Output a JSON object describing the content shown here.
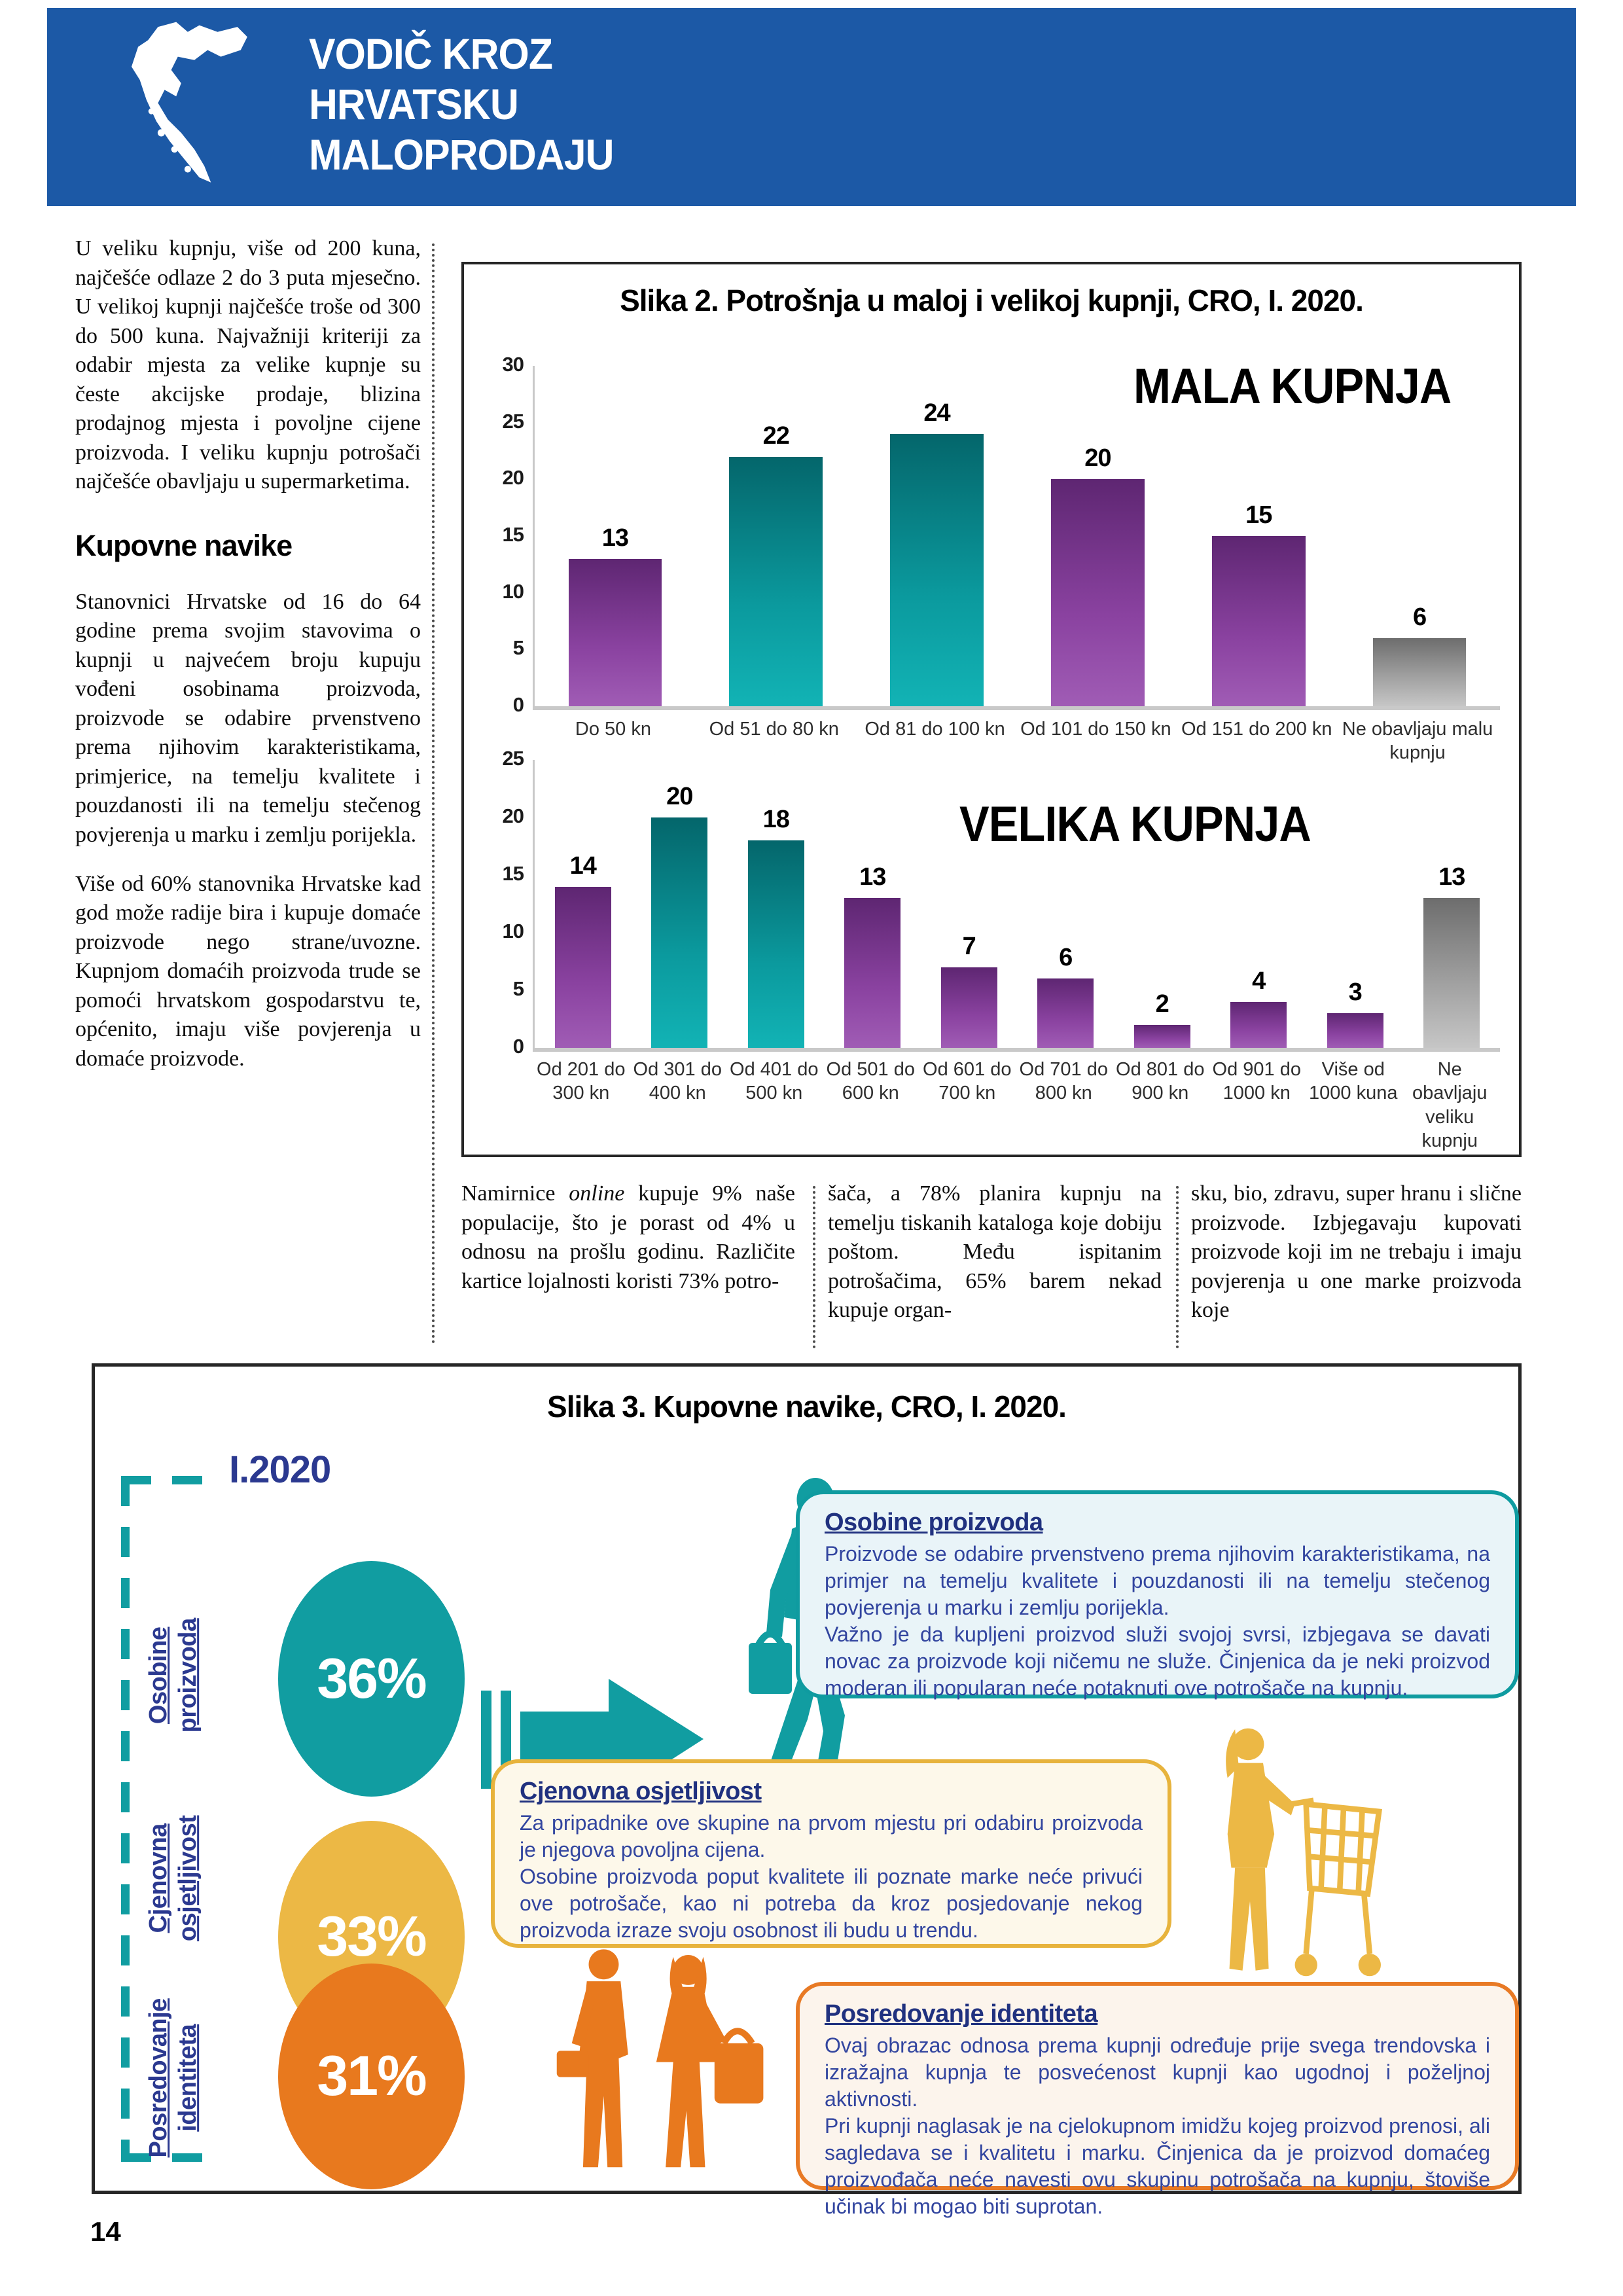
{
  "page": {
    "number": "14"
  },
  "header": {
    "title_line1": "VODIČ KROZ",
    "title_line2": "HRVATSKU",
    "title_line3": "MALOPRODAJU",
    "bg_color": "#1c59a6"
  },
  "left_column": {
    "p1": "U veliku kupnju, više od 200 kuna, najčešće odlaze 2 do 3 puta mjesečno. U velikoj kupnji najčešće troše od 300 do 500 kuna. Najvažniji kriteriji za odabir mjesta za velike kupnje su česte akcijske prodaje, blizina prodajnog mjesta i povoljne cijene proizvoda. I veliku kupnju potrošači najčešće obavljaju u supermarketima.",
    "heading": "Kupovne navike",
    "p2": "Stanovnici Hrvatske od 16 do 64 godine prema svojim stavovima o kupnji u najvećem broju kupuju vođeni osobinama proizvoda, proizvode se odabire prvenstveno prema njihovim karakteristikama, primjerice, na temelju kvalitete i pouzdanosti ili na temelju stečenog povjerenja u marku i zemlju porijekla.",
    "p3": "Više od 60% stanovnika Hrvatske kad god može radije bira i kupuje domaće proizvode nego strane/uvozne. Kupnjom domaćih proizvoda trude se pomoći hrvatskom gospodarstvu te, općenito, imaju više povjerenja u domaće proizvode."
  },
  "figure2": {
    "title": "Slika 2. Potrošnja u maloj i velikoj kupnji, CRO, I. 2020."
  },
  "chart_data": [
    {
      "type": "bar",
      "title_label": "MALA KUPNJA",
      "categories": [
        "Do 50 kn",
        "Od 51 do 80 kn",
        "Od 81 do 100 kn",
        "Od 101 do 150 kn",
        "Od 151 do 200 kn",
        "Ne obavljaju malu kupnju"
      ],
      "values": [
        13,
        22,
        24,
        20,
        15,
        6
      ],
      "colors": [
        "purple",
        "teal",
        "teal",
        "purple",
        "purple",
        "gray"
      ],
      "ylim": [
        0,
        30
      ],
      "ytick_step": 5,
      "grid": false,
      "legend": "none"
    },
    {
      "type": "bar",
      "title_label": "VELIKA KUPNJA",
      "categories": [
        "Od 201 do 300 kn",
        "Od 301 do 400 kn",
        "Od 401 do 500 kn",
        "Od 501 do 600 kn",
        "Od 601 do 700 kn",
        "Od 701 do 800 kn",
        "Od 801 do 900 kn",
        "Od 901 do 1000 kn",
        "Više od 1000 kuna",
        "Ne obavljaju veliku kupnju"
      ],
      "values": [
        14,
        20,
        18,
        13,
        7,
        6,
        2,
        4,
        3,
        13
      ],
      "colors": [
        "purple",
        "teal",
        "teal",
        "purple",
        "purple",
        "purple",
        "purple",
        "purple",
        "purple",
        "gray"
      ],
      "ylim": [
        0,
        25
      ],
      "ytick_step": 5,
      "grid": false,
      "legend": "none"
    }
  ],
  "bottom_columns": {
    "col1_pre": "Namirnice ",
    "col1_italic": "online",
    "col1_post": " kupuje 9% naše populacije, što je porast od 4% u odnosu na prošlu godinu. Različite kartice lojalnosti koristi 73% potro-",
    "col2": "šača, a 78% planira kupnju na temelju tiskanih kataloga koje dobiju poštom. Među ispitanim potrošačima, 65% barem nekad kupuje organ-",
    "col3": "sku, bio, zdravu, super hranu i slične proizvode. Izbjegavaju kupovati proizvode koji im ne trebaju i imaju povjerenja u one marke proizvoda koje"
  },
  "infographic": {
    "title": "Slika 3. Kupovne navike, CRO, I. 2020.",
    "year_label": "I.2020",
    "sections": [
      {
        "side_line1": "Osobine",
        "side_line2": "proizvoda",
        "percent": "36%",
        "color": "#119da1",
        "box_title": "Osobine proizvoda",
        "box_p1": "Proizvode se odabire prvenstveno prema njihovim karakteristikama,  na primjer na temelju kvalitete i pouzdanosti ili na temelju stečenog povjerenja u marku i zemlju porijekla.",
        "box_p2": "Važno je da kupljeni proizvod služi svojoj svrsi,  izbjegava se davati novac za proizvode koji ničemu ne služe.  Činjenica da je neki proizvod moderan ili popularan neće potaknuti ove potrošače na kupnju."
      },
      {
        "side_line1": "Cjenovna",
        "side_line2": "osjetljivost",
        "percent": "33%",
        "color": "#ecb845",
        "box_title": "Cjenovna osjetljivost",
        "box_p1": "Za pripadnike ove skupine na prvom mjestu pri odabiru proizvoda je njegova povoljna cijena.",
        "box_p2": "Osobine proizvoda poput kvalitete ili poznate marke neće privući ove potrošače, kao ni potreba da kroz posjedovanje nekog proizvoda izraze svoju osobnost ili budu u trendu."
      },
      {
        "side_line1": "Posredovanje",
        "side_line2": "identiteta",
        "percent": "31%",
        "color": "#e8791e",
        "box_title": "Posredovanje identiteta",
        "box_p1": "Ovaj obrazac odnosa prema kupnji određuje prije svega trendovska i izražajna kupnja te posvećenost kupnji kao ugodnoj i poželjnoj aktivnosti.",
        "box_p2": "Pri kupnji naglasak je na cjelokupnom imidžu kojeg proizvod prenosi, ali sagledava se i kvalitetu i marku. Činjenica da je proizvod domaćeg proizvođača neće navesti ovu skupinu potrošača na kupnju, štoviše učinak bi mogao biti suprotan."
      }
    ]
  }
}
